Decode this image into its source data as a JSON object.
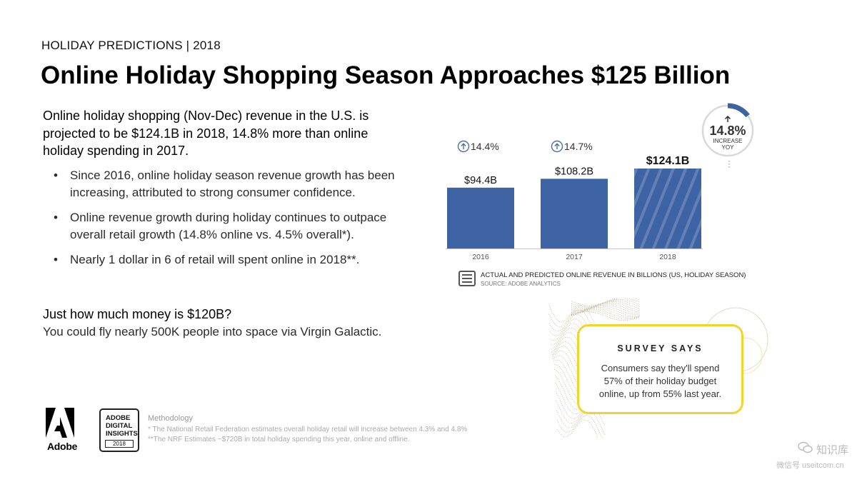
{
  "header": {
    "kicker": "HOLIDAY PREDICTIONS | 2018",
    "title": "Online Holiday Shopping Season Approaches $125 Billion"
  },
  "intro": {
    "lead": "Online holiday shopping (Nov-Dec) revenue in the U.S. is projected to be $124.1B in 2018, 14.8% more than online holiday spending in 2017.",
    "bullets": [
      "Since 2016, online holiday season revenue growth has been increasing, attributed to strong consumer confidence.",
      "Online revenue growth during holiday continues to outpace overall retail growth (14.8% online vs. 4.5% overall*).",
      "Nearly 1 dollar in 6 of retail will spent online in 2018**."
    ],
    "question": "Just how much money is $120B?",
    "answer": "You could fly nearly 500K people into space via Virgin Galactic."
  },
  "chart_data": {
    "type": "bar",
    "categories": [
      "2016",
      "2017",
      "2018"
    ],
    "values": [
      94.4,
      108.2,
      124.1
    ],
    "value_labels": [
      "$94.4B",
      "$108.2B",
      "$124.1B"
    ],
    "growth_labels": [
      "14.4%",
      "14.7%"
    ],
    "predicted": [
      false,
      false,
      true
    ],
    "ylim": [
      0,
      124.1
    ],
    "legend_title": "ACTUAL AND PREDICTED ONLINE REVENUE IN BILLIONS (US, HOLIDAY SEASON)",
    "source": "SOURCE: ADOBE ANALYTICS",
    "callout": {
      "value": "14.8%",
      "line1": "INCREASE",
      "line2": "YOY",
      "fraction": 0.148
    },
    "legend_icon_text": [
      "ADOBE",
      "DIGITAL",
      "INSIGHTS"
    ],
    "colors": {
      "bar": "#3d63a3",
      "predicted_stripe": "#6280b5",
      "axis": "#c8c8c8",
      "ring": "#d9d9d9",
      "icon": "#4a6fa5"
    }
  },
  "survey": {
    "title": "SURVEY SAYS",
    "text": "Consumers say they'll spend 57% of their holiday budget online, up from 55% last year.",
    "border_color": "#f1d42c"
  },
  "footer": {
    "adobe_word": "Adobe",
    "badge_lines": [
      "ADOBE",
      "DIGITAL",
      "INSIGHTS"
    ],
    "badge_year": "2018",
    "methodology_title": "Methodology",
    "methodology_1": "* The National Retail Federation estimates overall holiday retail will increase between 4.3% and 4.8%",
    "methodology_2": "**The NRF Estimates ~$720B in total holiday spending this year, online and offline."
  },
  "watermark": {
    "name": "知识库",
    "url": "微信号 useitcom.cn"
  }
}
